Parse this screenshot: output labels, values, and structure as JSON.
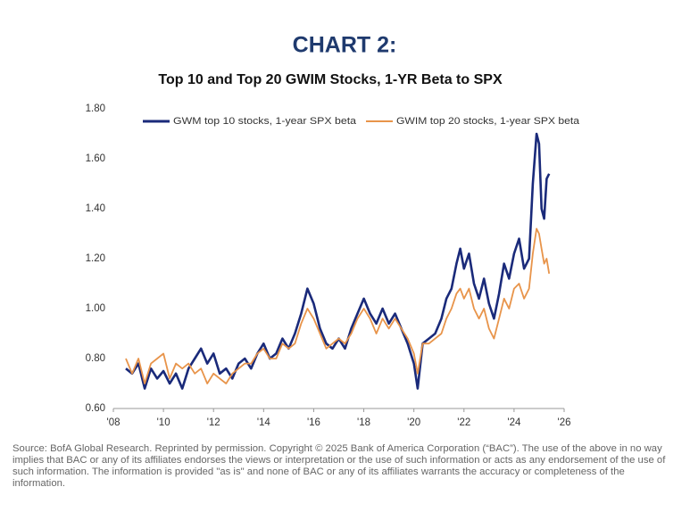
{
  "chart_data": {
    "type": "line",
    "title": "CHART 2:",
    "subtitle": "Top 10 and Top 20 GWIM Stocks, 1-YR Beta to SPX",
    "source": "Source: BofA Global Research. Reprinted by permission. Copyright © 2025 Bank of America Corporation (“BAC”). The use of the above in no way implies that BAC or any of its affiliates endorses the views or interpretation or the use of such information or acts as any endorsement of the use of such information. The information is provided \"as is\" and none of BAC or any of its affiliates warrants the accuracy or completeness of the information.",
    "x": [
      2008.5,
      2008.75,
      2009.0,
      2009.25,
      2009.5,
      2009.75,
      2010.0,
      2010.25,
      2010.5,
      2010.75,
      2011.0,
      2011.25,
      2011.5,
      2011.75,
      2012.0,
      2012.25,
      2012.5,
      2012.75,
      2013.0,
      2013.25,
      2013.5,
      2013.75,
      2014.0,
      2014.25,
      2014.5,
      2014.75,
      2015.0,
      2015.25,
      2015.5,
      2015.75,
      2016.0,
      2016.25,
      2016.5,
      2016.75,
      2017.0,
      2017.25,
      2017.5,
      2017.75,
      2018.0,
      2018.25,
      2018.5,
      2018.75,
      2019.0,
      2019.25,
      2019.5,
      2019.75,
      2020.0,
      2020.15,
      2020.35,
      2020.6,
      2020.85,
      2021.1,
      2021.3,
      2021.5,
      2021.7,
      2021.85,
      2022.0,
      2022.2,
      2022.4,
      2022.6,
      2022.8,
      2023.0,
      2023.2,
      2023.4,
      2023.6,
      2023.8,
      2024.0,
      2024.2,
      2024.4,
      2024.6,
      2024.75,
      2024.9,
      2025.0,
      2025.1,
      2025.2,
      2025.3,
      2025.4
    ],
    "series": [
      {
        "name": "GWM top 10 stocks, 1-year SPX beta",
        "color": "#1a2a7a",
        "values": [
          0.76,
          0.74,
          0.78,
          0.68,
          0.76,
          0.72,
          0.75,
          0.7,
          0.74,
          0.68,
          0.76,
          0.8,
          0.84,
          0.78,
          0.82,
          0.74,
          0.76,
          0.72,
          0.78,
          0.8,
          0.76,
          0.82,
          0.86,
          0.8,
          0.82,
          0.88,
          0.84,
          0.9,
          0.98,
          1.08,
          1.02,
          0.92,
          0.86,
          0.84,
          0.88,
          0.84,
          0.92,
          0.98,
          1.04,
          0.98,
          0.94,
          1.0,
          0.94,
          0.98,
          0.92,
          0.86,
          0.78,
          0.68,
          0.86,
          0.88,
          0.9,
          0.96,
          1.04,
          1.08,
          1.18,
          1.24,
          1.16,
          1.22,
          1.1,
          1.04,
          1.12,
          1.02,
          0.96,
          1.06,
          1.18,
          1.12,
          1.22,
          1.28,
          1.16,
          1.2,
          1.5,
          1.7,
          1.66,
          1.4,
          1.36,
          1.52,
          1.54
        ]
      },
      {
        "name": "GWIM top 20 stocks, 1-year SPX beta",
        "color": "#e8944a",
        "values": [
          0.8,
          0.74,
          0.8,
          0.7,
          0.78,
          0.8,
          0.82,
          0.72,
          0.78,
          0.76,
          0.78,
          0.74,
          0.76,
          0.7,
          0.74,
          0.72,
          0.7,
          0.74,
          0.76,
          0.78,
          0.78,
          0.82,
          0.84,
          0.8,
          0.8,
          0.86,
          0.84,
          0.86,
          0.94,
          1.0,
          0.96,
          0.9,
          0.84,
          0.86,
          0.88,
          0.86,
          0.9,
          0.96,
          1.0,
          0.96,
          0.9,
          0.96,
          0.92,
          0.96,
          0.92,
          0.88,
          0.82,
          0.74,
          0.86,
          0.86,
          0.88,
          0.9,
          0.96,
          1.0,
          1.06,
          1.08,
          1.04,
          1.08,
          1.0,
          0.96,
          1.0,
          0.92,
          0.88,
          0.96,
          1.04,
          1.0,
          1.08,
          1.1,
          1.04,
          1.08,
          1.22,
          1.32,
          1.3,
          1.24,
          1.18,
          1.2,
          1.14
        ]
      }
    ],
    "xlim": [
      2008,
      2026
    ],
    "xticks": [
      {
        "value": 2008,
        "label": "'08"
      },
      {
        "value": 2010,
        "label": "'10"
      },
      {
        "value": 2012,
        "label": "'12"
      },
      {
        "value": 2014,
        "label": "'14"
      },
      {
        "value": 2016,
        "label": "'16"
      },
      {
        "value": 2018,
        "label": "'18"
      },
      {
        "value": 2020,
        "label": "'20"
      },
      {
        "value": 2022,
        "label": "'22"
      },
      {
        "value": 2024,
        "label": "'24"
      },
      {
        "value": 2026,
        "label": "'26"
      }
    ],
    "ylim": [
      0.6,
      1.8
    ],
    "yticks": [
      {
        "value": 0.6,
        "label": "0.60"
      },
      {
        "value": 0.8,
        "label": "0.80"
      },
      {
        "value": 1.0,
        "label": "1.00"
      },
      {
        "value": 1.2,
        "label": "1.20"
      },
      {
        "value": 1.4,
        "label": "1.40"
      },
      {
        "value": 1.6,
        "label": "1.60"
      },
      {
        "value": 1.8,
        "label": "1.80"
      }
    ],
    "legend": "top"
  }
}
